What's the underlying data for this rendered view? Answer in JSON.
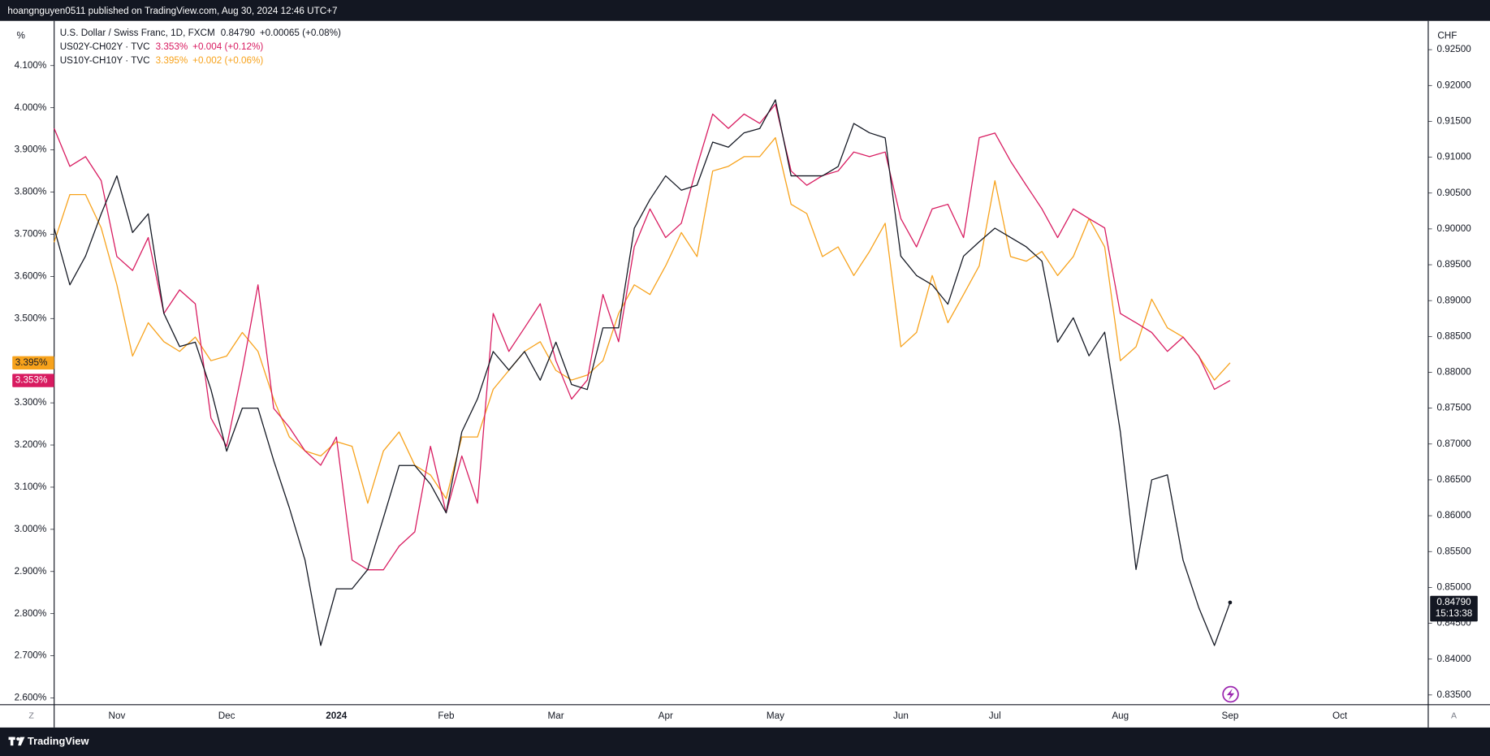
{
  "header": {
    "text": "hoangnguyen0511 published on TradingView.com, Aug 30, 2024 12:46 UTC+7"
  },
  "footer": {
    "brand": "TradingView"
  },
  "chart_data": {
    "type": "line",
    "categories": [
      null,
      null,
      null,
      null,
      "Nov",
      null,
      null,
      null,
      null,
      null,
      null,
      "Dec",
      null,
      null,
      null,
      null,
      null,
      null,
      "2024",
      null,
      null,
      null,
      null,
      null,
      null,
      "Feb",
      null,
      null,
      null,
      null,
      null,
      null,
      "Mar",
      null,
      null,
      null,
      null,
      null,
      null,
      "Apr",
      null,
      null,
      null,
      null,
      null,
      null,
      "May",
      null,
      null,
      null,
      null,
      null,
      null,
      null,
      "Jun",
      null,
      null,
      null,
      null,
      null,
      "Jul",
      null,
      null,
      null,
      null,
      null,
      null,
      null,
      "Aug",
      null,
      null,
      null,
      null,
      null,
      null,
      "Sep",
      null,
      null,
      null,
      null,
      null,
      null,
      "Oct"
    ],
    "y_unit": "%",
    "y2_unit": "CHF",
    "ylim": [
      2.584,
      4.206
    ],
    "yticks": [
      {
        "value": 2.6,
        "label": "2.600%"
      },
      {
        "value": 2.7,
        "label": "2.700%"
      },
      {
        "value": 2.8,
        "label": "2.800%"
      },
      {
        "value": 2.9,
        "label": "2.900%"
      },
      {
        "value": 3.0,
        "label": "3.000%"
      },
      {
        "value": 3.1,
        "label": "3.100%"
      },
      {
        "value": 3.2,
        "label": "3.200%"
      },
      {
        "value": 3.3,
        "label": "3.300%"
      },
      {
        "value": 3.4,
        "label": "3.400%"
      },
      {
        "value": 3.5,
        "label": "3.500%"
      },
      {
        "value": 3.6,
        "label": "3.600%"
      },
      {
        "value": 3.7,
        "label": "3.700%"
      },
      {
        "value": 3.8,
        "label": "3.800%"
      },
      {
        "value": 3.9,
        "label": "3.900%"
      },
      {
        "value": 4.0,
        "label": "4.000%"
      },
      {
        "value": 4.1,
        "label": "4.100%"
      }
    ],
    "y2lim": [
      0.83364,
      0.92901
    ],
    "y2ticks": [
      {
        "value": 0.835,
        "label": "0.83500"
      },
      {
        "value": 0.84,
        "label": "0.84000"
      },
      {
        "value": 0.845,
        "label": "0.84500"
      },
      {
        "value": 0.85,
        "label": "0.85000"
      },
      {
        "value": 0.855,
        "label": "0.85500"
      },
      {
        "value": 0.86,
        "label": "0.86000"
      },
      {
        "value": 0.865,
        "label": "0.86500"
      },
      {
        "value": 0.87,
        "label": "0.87000"
      },
      {
        "value": 0.875,
        "label": "0.87500"
      },
      {
        "value": 0.88,
        "label": "0.88000"
      },
      {
        "value": 0.885,
        "label": "0.88500"
      },
      {
        "value": 0.89,
        "label": "0.89000"
      },
      {
        "value": 0.895,
        "label": "0.89500"
      },
      {
        "value": 0.9,
        "label": "0.90000"
      },
      {
        "value": 0.905,
        "label": "0.90500"
      },
      {
        "value": 0.91,
        "label": "0.91000"
      },
      {
        "value": 0.915,
        "label": "0.91500"
      },
      {
        "value": 0.92,
        "label": "0.92000"
      },
      {
        "value": 0.925,
        "label": "0.92500"
      }
    ],
    "grid": false,
    "scale_buttons": [
      "Z",
      "A"
    ],
    "series": [
      {
        "name": "U.S. Dollar / Swiss Franc, 1D, FXCM",
        "color": "#131722",
        "axis": "y2",
        "last_label": "0.84790",
        "change": "+0.00065 (+0.08%)",
        "countdown": "15:13:38",
        "values": [
          0.9001,
          0.8922,
          0.8962,
          0.9021,
          0.9074,
          0.8995,
          0.9021,
          0.8882,
          0.8836,
          0.8842,
          0.8776,
          0.869,
          0.875,
          0.875,
          0.8677,
          0.8611,
          0.8538,
          0.8419,
          0.8498,
          0.8498,
          0.8525,
          0.8597,
          0.867,
          0.867,
          0.8644,
          0.8604,
          0.8717,
          0.8763,
          0.8829,
          0.8803,
          0.8829,
          0.8789,
          0.8842,
          0.8783,
          0.8776,
          0.8862,
          0.8862,
          0.9001,
          0.9041,
          0.9074,
          0.9054,
          0.9061,
          0.9121,
          0.9114,
          0.9134,
          0.914,
          0.918,
          0.9074,
          0.9074,
          0.9074,
          0.9087,
          0.9147,
          0.9134,
          0.9127,
          0.8962,
          0.8935,
          0.8922,
          0.8895,
          0.8962,
          0.8982,
          0.9001,
          0.8988,
          0.8975,
          0.8955,
          0.8842,
          0.8876,
          0.8823,
          0.8856,
          0.8717,
          0.8525,
          0.865,
          0.8657,
          0.8538,
          0.8472,
          0.8419,
          0.8479,
          null,
          null,
          null,
          null,
          null,
          null,
          null
        ]
      },
      {
        "name": "US02Y-CH02Y · TVC",
        "color": "#d81b60",
        "last_label": "3.353%",
        "change": "+0.004 (+0.12%)",
        "values": [
          3.951,
          3.861,
          3.884,
          3.827,
          3.647,
          3.614,
          3.692,
          3.512,
          3.568,
          3.535,
          3.264,
          3.197,
          3.377,
          3.58,
          3.287,
          3.242,
          3.186,
          3.152,
          3.219,
          2.927,
          2.904,
          2.904,
          2.96,
          2.994,
          3.197,
          3.039,
          3.174,
          3.062,
          3.512,
          3.422,
          3.478,
          3.535,
          3.4,
          3.309,
          3.354,
          3.557,
          3.445,
          3.67,
          3.76,
          3.692,
          3.726,
          3.861,
          3.985,
          3.951,
          3.985,
          3.963,
          4.008,
          3.85,
          3.816,
          3.839,
          3.85,
          3.895,
          3.884,
          3.895,
          3.737,
          3.67,
          3.76,
          3.771,
          3.692,
          3.929,
          3.94,
          3.873,
          3.816,
          3.76,
          3.692,
          3.76,
          3.737,
          3.715,
          3.512,
          3.49,
          3.467,
          3.422,
          3.456,
          3.411,
          3.332,
          3.353,
          null,
          null,
          null,
          null,
          null,
          null,
          null
        ]
      },
      {
        "name": "US10Y-CH10Y · TVC",
        "color": "#f7a21b",
        "last_label": "3.395%",
        "change": "+0.002 (+0.06%)",
        "values": [
          3.681,
          3.794,
          3.794,
          3.715,
          3.58,
          3.411,
          3.49,
          3.445,
          3.422,
          3.456,
          3.4,
          3.411,
          3.467,
          3.422,
          3.309,
          3.219,
          3.186,
          3.174,
          3.208,
          3.197,
          3.062,
          3.186,
          3.231,
          3.152,
          3.129,
          3.073,
          3.219,
          3.219,
          3.332,
          3.377,
          3.422,
          3.445,
          3.377,
          3.354,
          3.366,
          3.4,
          3.512,
          3.58,
          3.557,
          3.625,
          3.704,
          3.647,
          3.85,
          3.861,
          3.884,
          3.884,
          3.929,
          3.771,
          3.749,
          3.647,
          3.67,
          3.602,
          3.659,
          3.726,
          3.433,
          3.467,
          3.602,
          3.49,
          3.557,
          3.625,
          3.827,
          3.647,
          3.636,
          3.659,
          3.602,
          3.647,
          3.737,
          3.67,
          3.4,
          3.433,
          3.546,
          3.478,
          3.456,
          3.411,
          3.354,
          3.395,
          null,
          null,
          null,
          null,
          null,
          null,
          null
        ]
      }
    ]
  }
}
